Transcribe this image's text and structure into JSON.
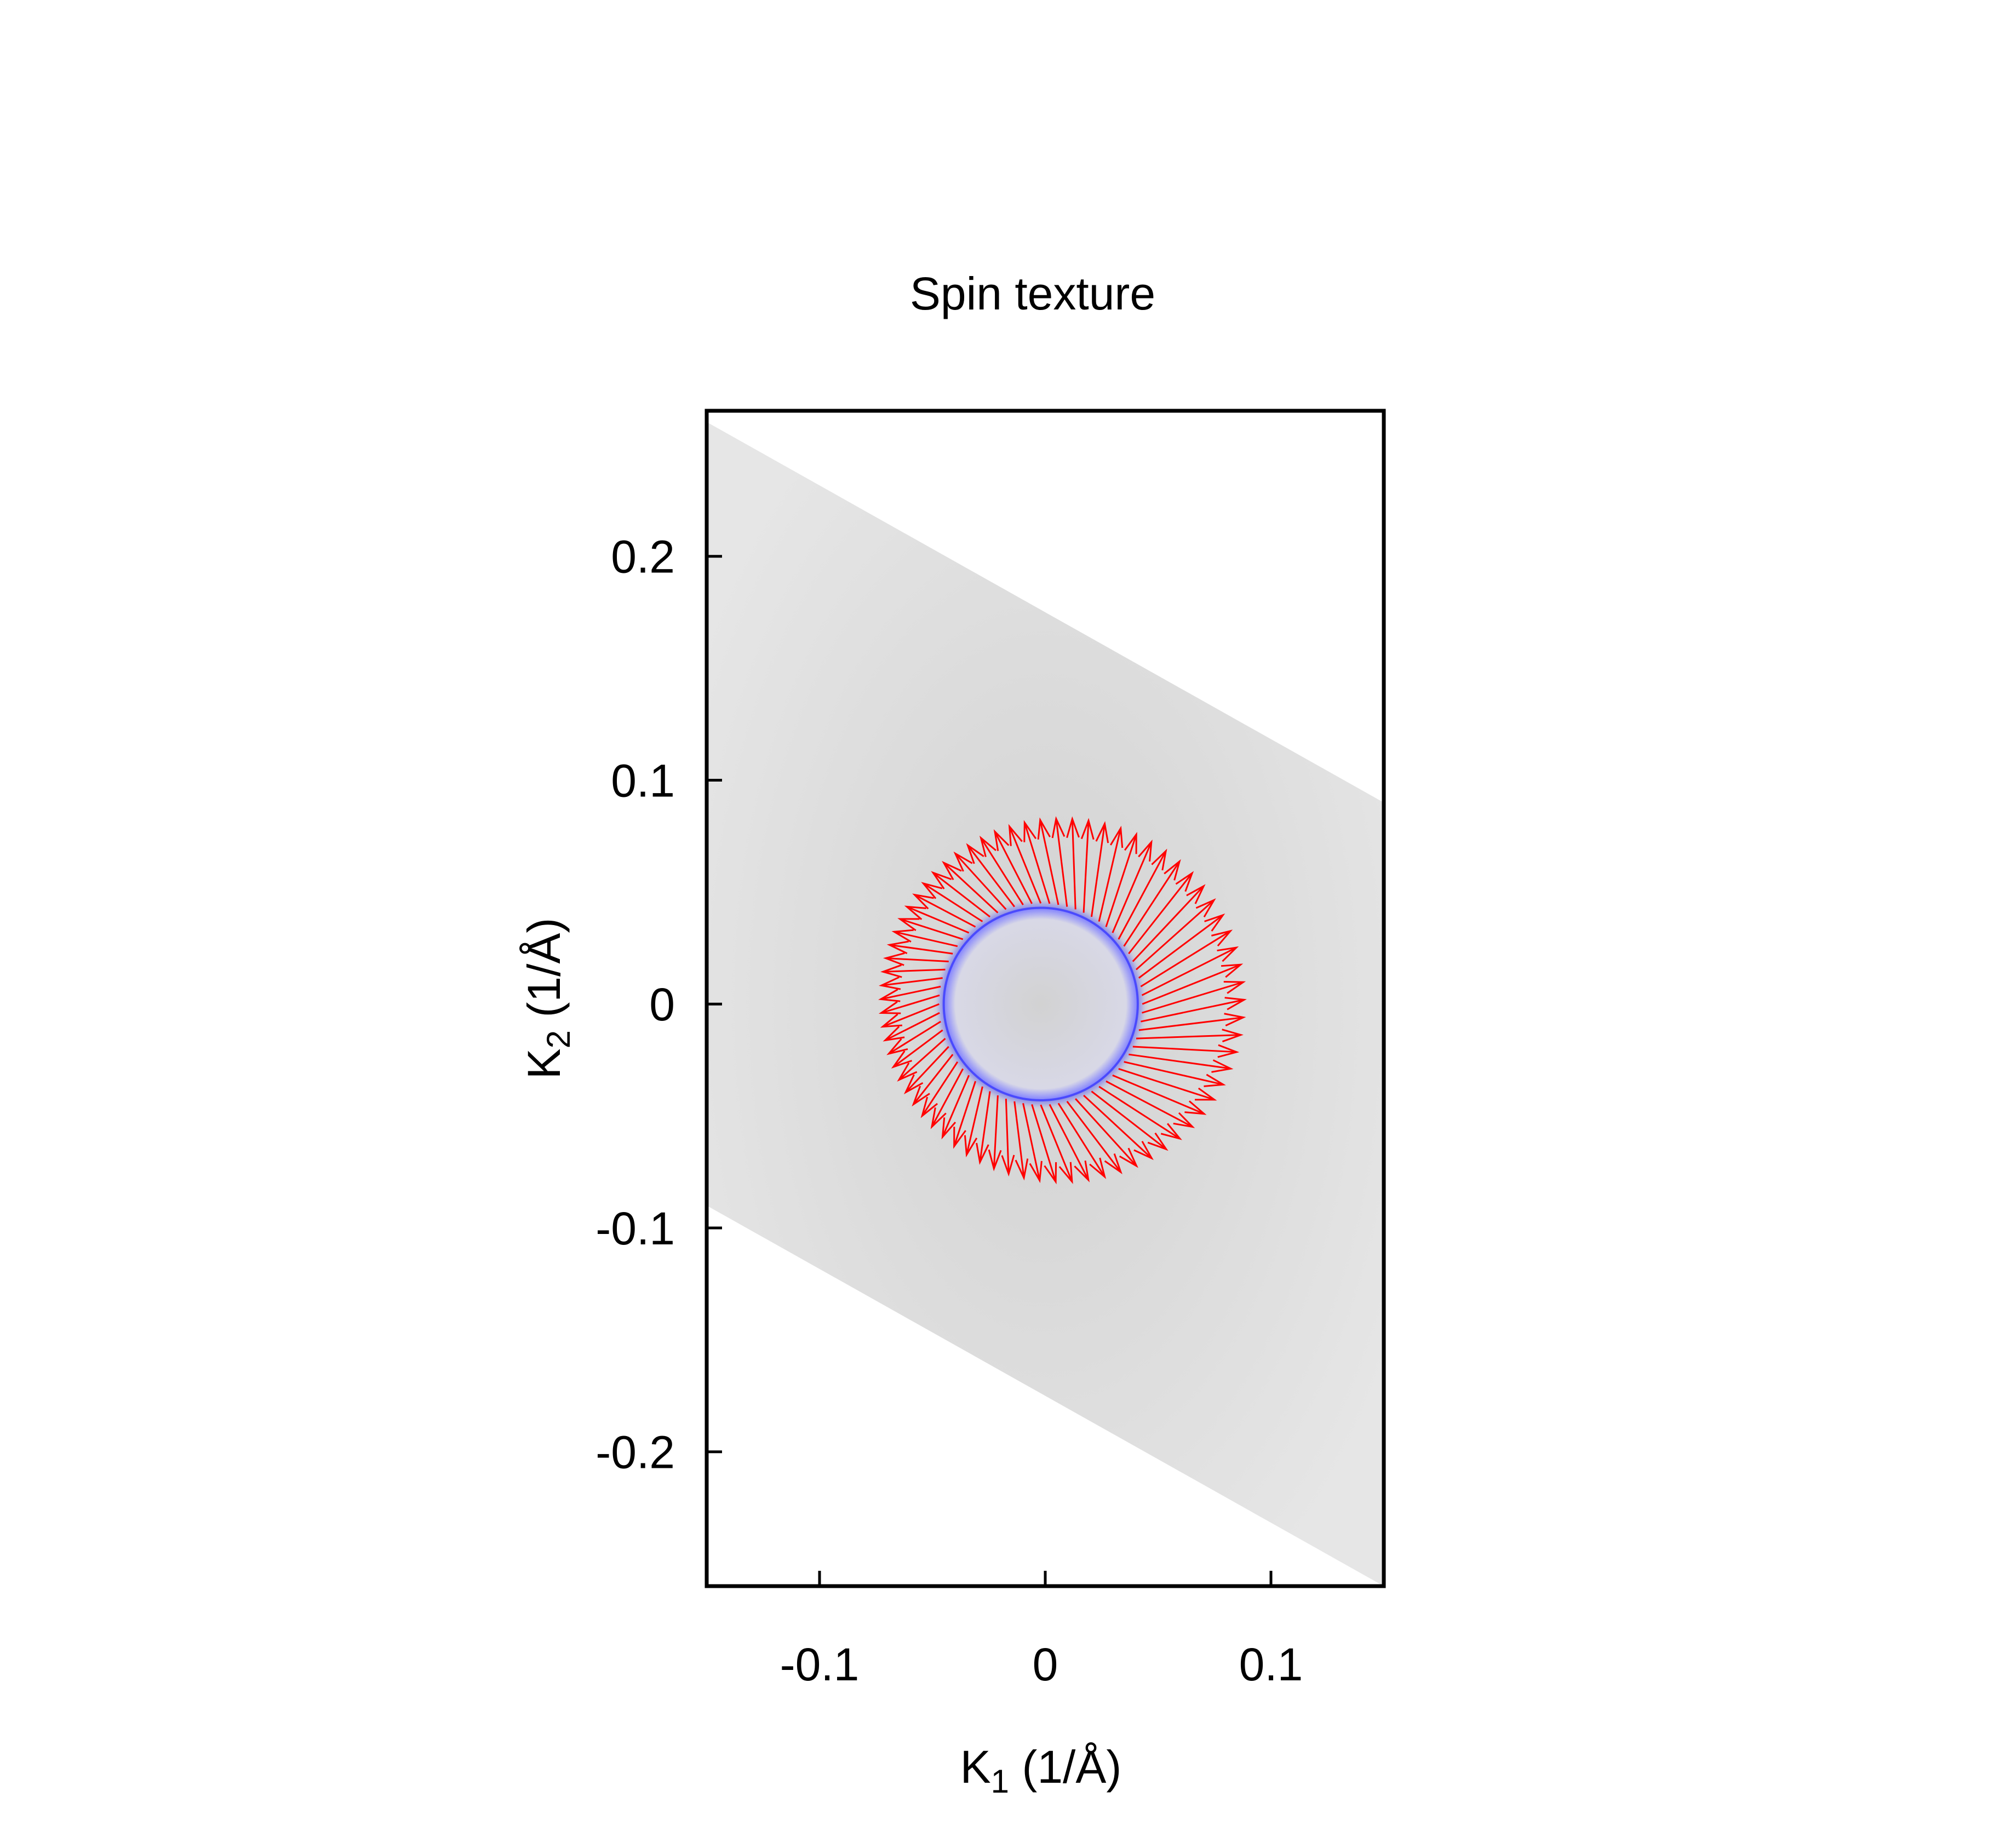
{
  "chart_data": {
    "type": "vector-field",
    "title": "Spin texture",
    "xlabel": {
      "symbol": "K",
      "subscript": "1",
      "unit": " (1/Å)"
    },
    "ylabel": {
      "symbol": "K",
      "subscript": "2",
      "unit": " (1/Å)"
    },
    "xlim": [
      -0.15,
      0.15
    ],
    "ylim": [
      -0.26,
      0.265
    ],
    "xticks": [
      -0.1,
      0,
      0.1
    ],
    "xtick_labels": [
      "-0.1",
      "0",
      "0.1"
    ],
    "yticks": [
      -0.2,
      -0.1,
      0,
      0.1,
      0.2
    ],
    "ytick_labels": [
      "-0.2",
      "-0.1",
      "0",
      "0.1",
      "0.2"
    ],
    "brillouin_zone": {
      "vertices": [
        [
          -0.15,
          0.26
        ],
        [
          0.15,
          0.09
        ],
        [
          0.15,
          -0.26
        ],
        [
          -0.15,
          -0.09
        ]
      ],
      "color": "#e4e4e4"
    },
    "fermi_contour": {
      "center": [
        -0.002,
        0.0
      ],
      "radius_k1": 0.043,
      "radius_k2": 0.043,
      "color": "#3a3aff"
    },
    "spin_arrows": {
      "count": 72,
      "color": "#ff0000",
      "start_radius": 0.045,
      "length_min": 0.027,
      "length_max": 0.047,
      "max_length_angle_deg": 0,
      "rotation_deg": 22
    },
    "grid": false,
    "legend": "none"
  }
}
